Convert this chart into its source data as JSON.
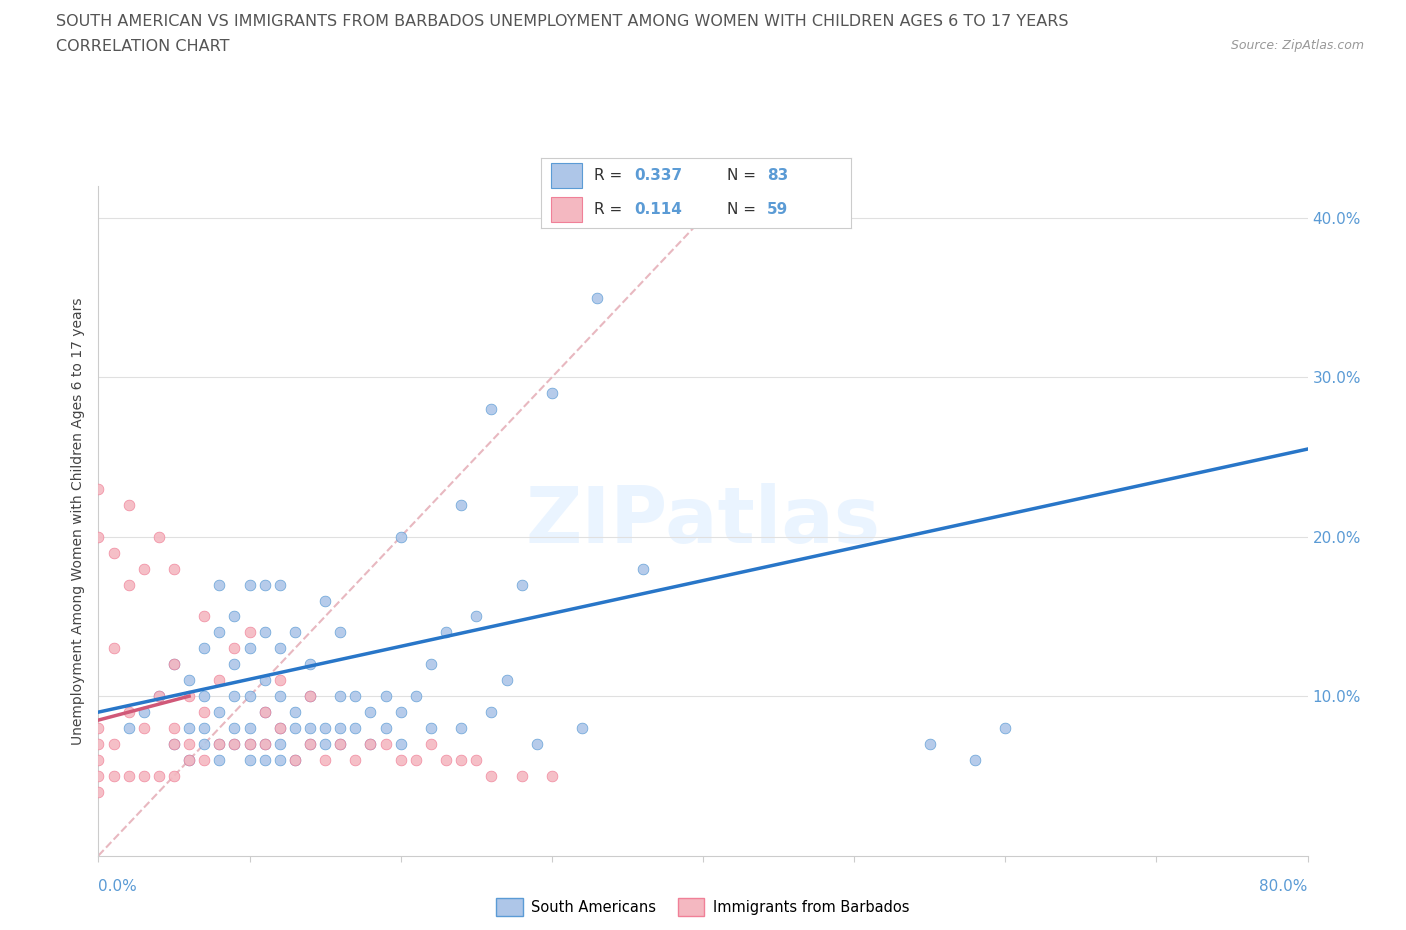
{
  "title_line1": "SOUTH AMERICAN VS IMMIGRANTS FROM BARBADOS UNEMPLOYMENT AMONG WOMEN WITH CHILDREN AGES 6 TO 17 YEARS",
  "title_line2": "CORRELATION CHART",
  "source_text": "Source: ZipAtlas.com",
  "ylabel": "Unemployment Among Women with Children Ages 6 to 17 years",
  "xlim": [
    0.0,
    0.8
  ],
  "ylim": [
    0.0,
    0.42
  ],
  "r_sa": 0.337,
  "n_sa": 83,
  "r_bar": 0.114,
  "n_bar": 59,
  "color_sa": "#aec6e8",
  "color_bar": "#f4b8c1",
  "color_sa_dark": "#5b9bd5",
  "color_bar_dark": "#f08098",
  "trend_sa_color": "#2876c8",
  "trend_bar_color": "#d05878",
  "diag_color": "#e8b8c0",
  "watermark": "ZIPatlas",
  "sa_x": [
    0.02,
    0.03,
    0.04,
    0.05,
    0.05,
    0.06,
    0.06,
    0.06,
    0.07,
    0.07,
    0.07,
    0.07,
    0.08,
    0.08,
    0.08,
    0.08,
    0.08,
    0.09,
    0.09,
    0.09,
    0.09,
    0.09,
    0.1,
    0.1,
    0.1,
    0.1,
    0.1,
    0.1,
    0.11,
    0.11,
    0.11,
    0.11,
    0.11,
    0.11,
    0.12,
    0.12,
    0.12,
    0.12,
    0.12,
    0.12,
    0.13,
    0.13,
    0.13,
    0.13,
    0.14,
    0.14,
    0.14,
    0.14,
    0.15,
    0.15,
    0.15,
    0.16,
    0.16,
    0.16,
    0.16,
    0.17,
    0.17,
    0.18,
    0.18,
    0.19,
    0.19,
    0.2,
    0.2,
    0.2,
    0.21,
    0.22,
    0.22,
    0.23,
    0.24,
    0.24,
    0.25,
    0.26,
    0.26,
    0.27,
    0.28,
    0.29,
    0.3,
    0.32,
    0.33,
    0.36,
    0.55,
    0.58,
    0.6
  ],
  "sa_y": [
    0.08,
    0.09,
    0.1,
    0.07,
    0.12,
    0.06,
    0.08,
    0.11,
    0.07,
    0.08,
    0.1,
    0.13,
    0.06,
    0.07,
    0.09,
    0.14,
    0.17,
    0.07,
    0.08,
    0.1,
    0.12,
    0.15,
    0.06,
    0.07,
    0.08,
    0.1,
    0.13,
    0.17,
    0.06,
    0.07,
    0.09,
    0.11,
    0.14,
    0.17,
    0.06,
    0.07,
    0.08,
    0.1,
    0.13,
    0.17,
    0.06,
    0.08,
    0.09,
    0.14,
    0.07,
    0.08,
    0.1,
    0.12,
    0.07,
    0.08,
    0.16,
    0.07,
    0.08,
    0.1,
    0.14,
    0.08,
    0.1,
    0.07,
    0.09,
    0.08,
    0.1,
    0.07,
    0.09,
    0.2,
    0.1,
    0.08,
    0.12,
    0.14,
    0.08,
    0.22,
    0.15,
    0.09,
    0.28,
    0.11,
    0.17,
    0.07,
    0.29,
    0.08,
    0.35,
    0.18,
    0.07,
    0.06,
    0.08
  ],
  "bar_x": [
    0.0,
    0.0,
    0.0,
    0.0,
    0.0,
    0.0,
    0.0,
    0.01,
    0.01,
    0.01,
    0.01,
    0.02,
    0.02,
    0.02,
    0.02,
    0.03,
    0.03,
    0.03,
    0.04,
    0.04,
    0.04,
    0.05,
    0.05,
    0.05,
    0.05,
    0.05,
    0.06,
    0.06,
    0.06,
    0.07,
    0.07,
    0.07,
    0.08,
    0.08,
    0.09,
    0.09,
    0.1,
    0.1,
    0.11,
    0.11,
    0.12,
    0.12,
    0.13,
    0.14,
    0.14,
    0.15,
    0.16,
    0.17,
    0.18,
    0.19,
    0.2,
    0.21,
    0.22,
    0.23,
    0.24,
    0.25,
    0.26,
    0.28,
    0.3
  ],
  "bar_y": [
    0.04,
    0.05,
    0.06,
    0.07,
    0.08,
    0.2,
    0.23,
    0.05,
    0.07,
    0.13,
    0.19,
    0.05,
    0.09,
    0.17,
    0.22,
    0.05,
    0.08,
    0.18,
    0.05,
    0.1,
    0.2,
    0.05,
    0.07,
    0.08,
    0.12,
    0.18,
    0.06,
    0.07,
    0.1,
    0.06,
    0.09,
    0.15,
    0.07,
    0.11,
    0.07,
    0.13,
    0.07,
    0.14,
    0.07,
    0.09,
    0.08,
    0.11,
    0.06,
    0.07,
    0.1,
    0.06,
    0.07,
    0.06,
    0.07,
    0.07,
    0.06,
    0.06,
    0.07,
    0.06,
    0.06,
    0.06,
    0.05,
    0.05,
    0.05
  ]
}
